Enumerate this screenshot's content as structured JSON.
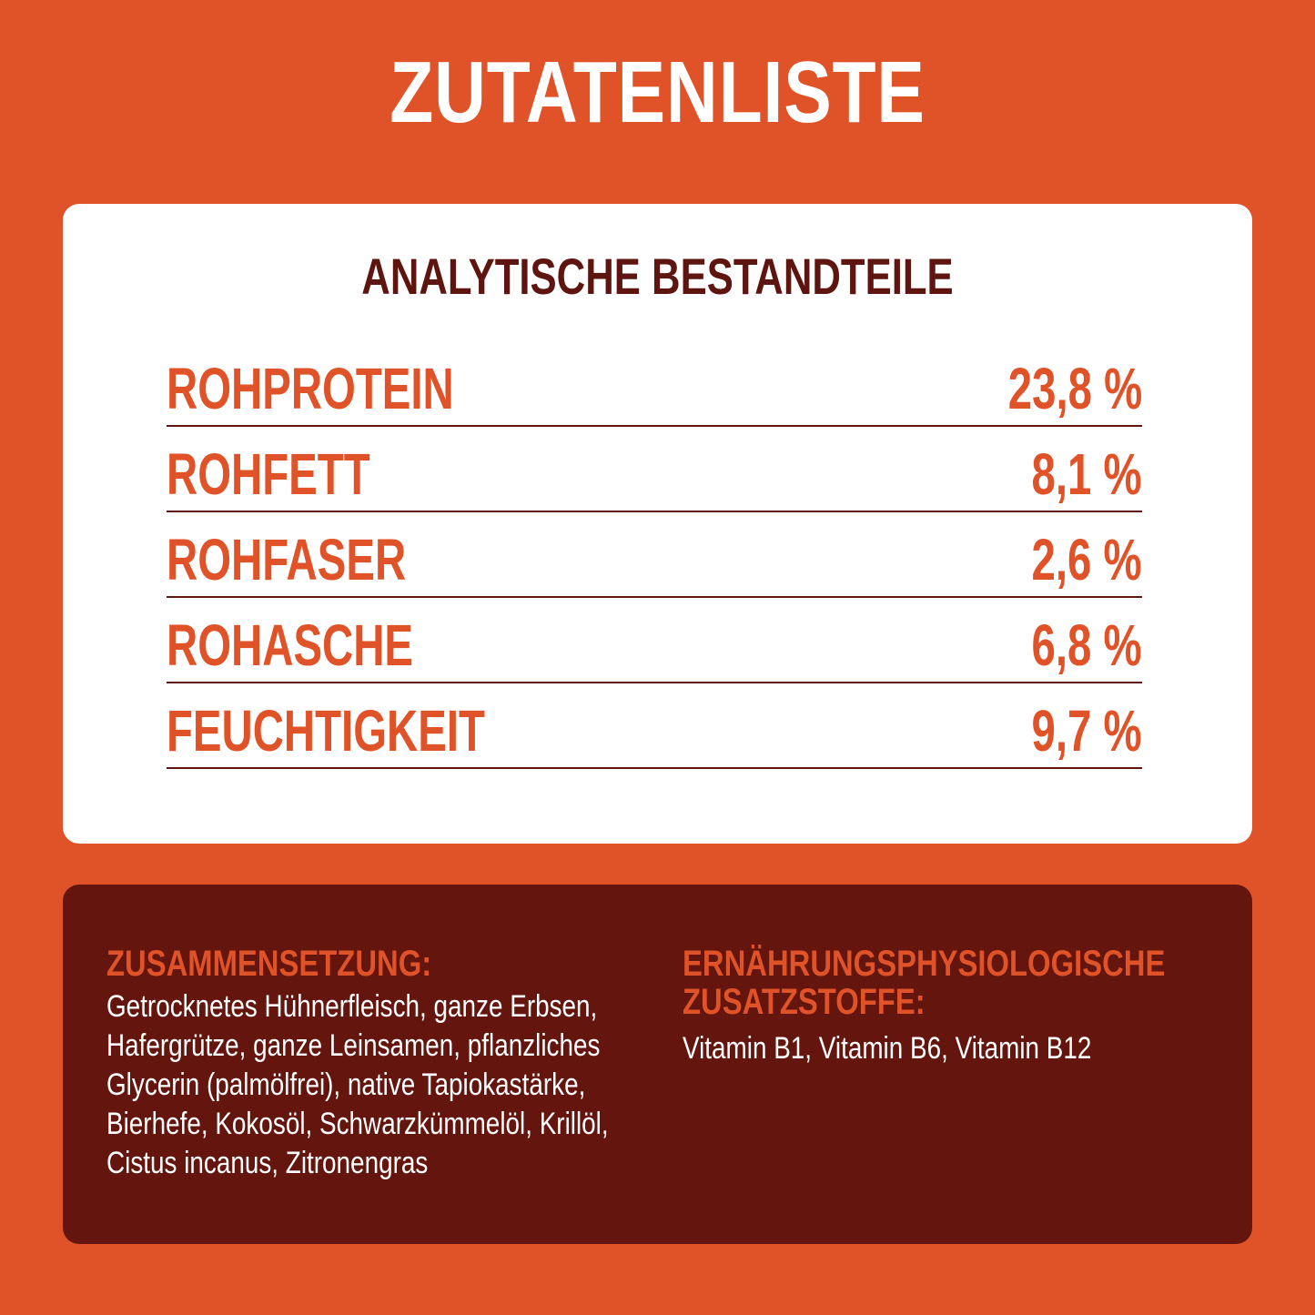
{
  "page": {
    "title": "ZUTATENLISTE"
  },
  "colors": {
    "background": "#e05227",
    "card": "#ffffff",
    "dark_brown": "#63150e",
    "accent_orange": "#e05227",
    "text_white": "#ffffff"
  },
  "analysis": {
    "heading": "ANALYTISCHE BESTANDTEILE",
    "rows": [
      {
        "name": "ROHPROTEIN",
        "value": "23,8 %"
      },
      {
        "name": "ROHFETT",
        "value": "8,1 %"
      },
      {
        "name": "ROHFASER",
        "value": "2,6 %"
      },
      {
        "name": "ROHASCHE",
        "value": "6,8 %"
      },
      {
        "name": "FEUCHTIGKEIT",
        "value": "9,7 %"
      }
    ]
  },
  "composition": {
    "heading": "ZUSAMMENSETZUNG:",
    "lines": [
      "Getrocknetes Hühnerfleisch, ganze Erbsen,",
      "Hafergrütze, ganze Leinsamen, pflanzliches",
      "Glycerin (palmölfrei), native Tapiokastärke,",
      "Bierhefe, Kokosöl, Schwarzkümmelöl, Krillöl,",
      "Cistus incanus, Zitronengras"
    ]
  },
  "additives": {
    "heading_lines": [
      "ERNÄHRUNGSPHYSIOLOGISCHE",
      "ZUSATZSTOFFE:"
    ],
    "text": "Vitamin B1, Vitamin B6, Vitamin B12"
  }
}
